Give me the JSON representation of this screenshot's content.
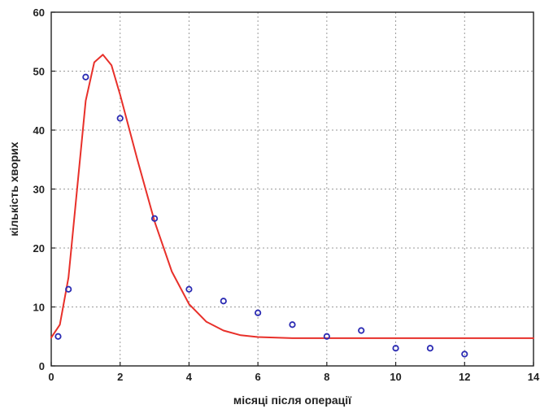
{
  "chart_data": {
    "type": "scatter",
    "xlabel": "місяці після операції",
    "ylabel": "кількість хворих",
    "xlim": [
      0,
      14
    ],
    "ylim": [
      0,
      60
    ],
    "x_ticks": [
      0,
      2,
      4,
      6,
      8,
      10,
      12,
      14
    ],
    "y_ticks": [
      0,
      10,
      20,
      30,
      40,
      50,
      60
    ],
    "grid": true,
    "legend": "none",
    "series": [
      {
        "kind": "points",
        "color": "#2b2bb3",
        "marker": "circle",
        "x": [
          0.2,
          0.5,
          1,
          2,
          3,
          4,
          5,
          6,
          7,
          8,
          9,
          10,
          11,
          12
        ],
        "y": [
          5,
          13,
          49,
          42,
          25,
          13,
          11,
          9,
          7,
          5,
          6,
          3,
          3,
          2
        ]
      },
      {
        "kind": "fit-line",
        "color": "#e8302a",
        "x": [
          0,
          0.25,
          0.5,
          0.75,
          1,
          1.25,
          1.5,
          1.75,
          2,
          2.5,
          3,
          3.5,
          4,
          4.5,
          5,
          5.5,
          6,
          7,
          8,
          9,
          10,
          11,
          12,
          13,
          14
        ],
        "y": [
          4.8,
          7,
          15,
          30,
          45,
          51.5,
          52.8,
          51,
          46,
          35,
          24.5,
          16,
          10.5,
          7.5,
          6,
          5.2,
          4.9,
          4.7,
          4.7,
          4.7,
          4.7,
          4.7,
          4.7,
          4.7,
          4.7
        ]
      }
    ]
  }
}
